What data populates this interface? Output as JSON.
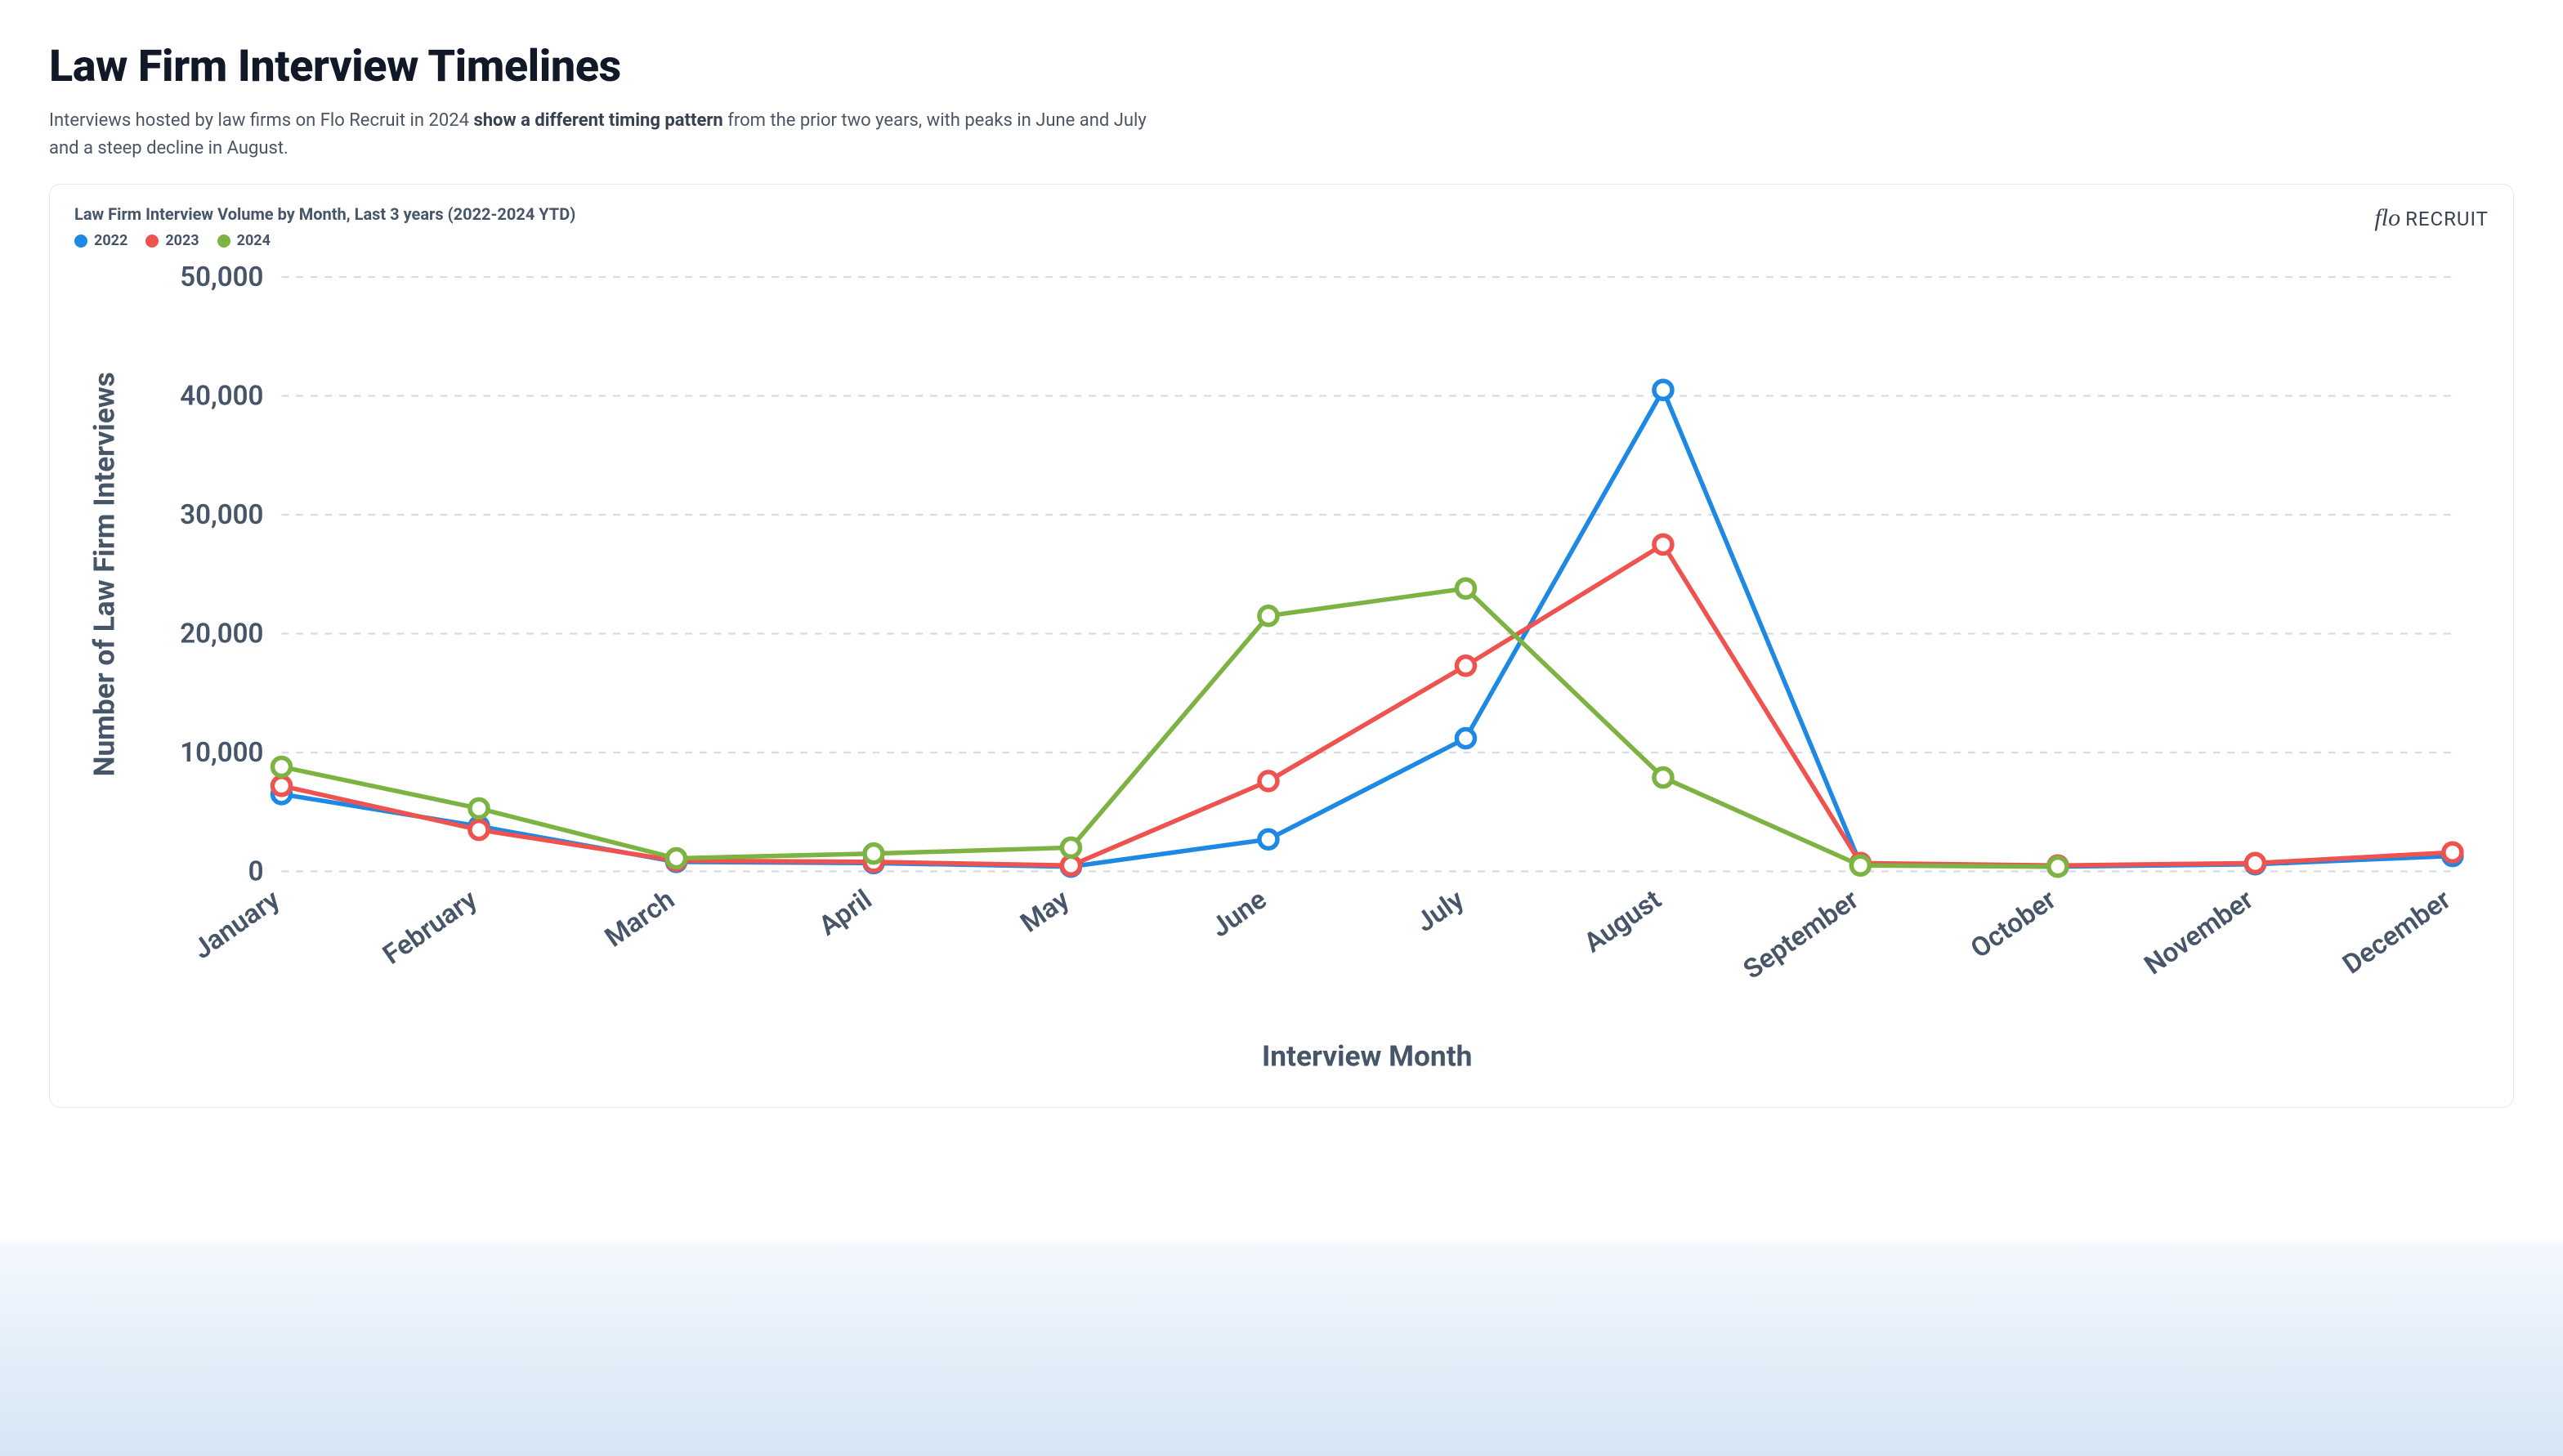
{
  "header": {
    "title": "Law Firm Interview Timelines",
    "subtitle_pre": "Interviews hosted by law firms on Flo Recruit in 2024 ",
    "subtitle_bold": "show a different timing pattern",
    "subtitle_post": " from the prior two years, with peaks in June and July and a steep decline in August."
  },
  "brand": {
    "flo": "flo",
    "recruit": "RECRUIT"
  },
  "chart": {
    "type": "line",
    "title": "Law Firm Interview Volume by Month, Last 3 years (2022-2024 YTD)",
    "x_label": "Interview Month",
    "y_label": "Number of Law Firm Interviews",
    "categories": [
      "January",
      "February",
      "March",
      "April",
      "May",
      "June",
      "July",
      "August",
      "September",
      "October",
      "November",
      "December"
    ],
    "ylim": [
      0,
      50000
    ],
    "ytick_step": 10000,
    "ytick_labels": [
      "0",
      "10,000",
      "20,000",
      "30,000",
      "40,000",
      "50,000"
    ],
    "grid_color": "#d7dbe3",
    "axis_text_color": "#475569",
    "background_color": "#ffffff",
    "line_width": 2.5,
    "marker_radius": 5,
    "marker_stroke_width": 2.5,
    "marker_fill": "#ffffff",
    "title_fontsize": 20,
    "label_fontsize": 16,
    "tick_fontsize": 15,
    "series": [
      {
        "name": "2022",
        "color": "#1e88e5",
        "values": [
          6500,
          3800,
          800,
          700,
          400,
          2700,
          11200,
          40500,
          600,
          400,
          600,
          1300
        ]
      },
      {
        "name": "2023",
        "color": "#ef5350",
        "values": [
          7200,
          3500,
          900,
          800,
          500,
          7600,
          17300,
          27500,
          700,
          500,
          700,
          1600
        ]
      },
      {
        "name": "2024",
        "color": "#7cb342",
        "values": [
          8800,
          5300,
          1100,
          1500,
          2000,
          21500,
          23800,
          7900,
          500,
          400,
          null,
          null
        ]
      }
    ]
  }
}
